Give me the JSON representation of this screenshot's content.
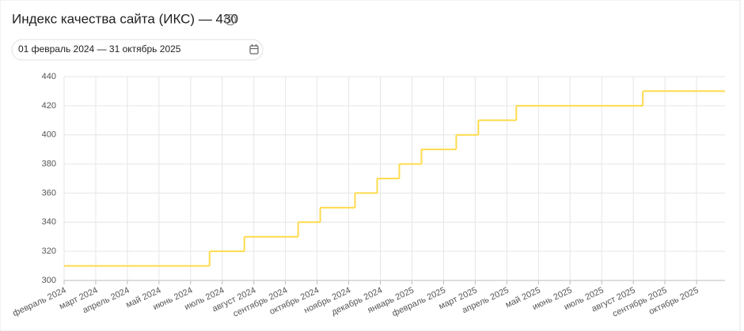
{
  "header": {
    "title": "Индекс качества сайта (ИКС) — 430",
    "date_range": "01 февраль 2024 — 31 октябрь 2025"
  },
  "chart_data": {
    "type": "step",
    "color": "#ffdb4d",
    "grid": true,
    "xlim": [
      0,
      20.9
    ],
    "xticks": [
      {
        "value": 0,
        "label": "февраль 2024"
      },
      {
        "value": 1,
        "label": "март 2024"
      },
      {
        "value": 2,
        "label": "апрель 2024"
      },
      {
        "value": 3,
        "label": "май 2024"
      },
      {
        "value": 4,
        "label": "июнь 2024"
      },
      {
        "value": 5,
        "label": "июль 2024"
      },
      {
        "value": 6,
        "label": "август 2024"
      },
      {
        "value": 7,
        "label": "сентябрь 2024"
      },
      {
        "value": 8,
        "label": "октябрь 2024"
      },
      {
        "value": 9,
        "label": "ноябрь 2024"
      },
      {
        "value": 10,
        "label": "декабрь 2024"
      },
      {
        "value": 11,
        "label": "январь 2025"
      },
      {
        "value": 12,
        "label": "февраль 2025"
      },
      {
        "value": 13,
        "label": "март 2025"
      },
      {
        "value": 14,
        "label": "апрель 2025"
      },
      {
        "value": 15,
        "label": "май 2025"
      },
      {
        "value": 16,
        "label": "июнь 2025"
      },
      {
        "value": 17,
        "label": "июль 2025"
      },
      {
        "value": 18,
        "label": "август 2025"
      },
      {
        "value": 19,
        "label": "сентябрь 2025"
      },
      {
        "value": 20,
        "label": "октябрь 2025"
      }
    ],
    "ylim": [
      300,
      440
    ],
    "yticks": [
      300,
      320,
      340,
      360,
      380,
      400,
      420,
      440
    ],
    "x": [
      0,
      4.6,
      5.7,
      7.4,
      8.1,
      9.2,
      9.9,
      10.6,
      11.3,
      12.4,
      13.1,
      14.3,
      18.3
    ],
    "values": [
      310,
      320,
      330,
      340,
      350,
      360,
      370,
      380,
      390,
      400,
      410,
      420,
      430
    ]
  }
}
